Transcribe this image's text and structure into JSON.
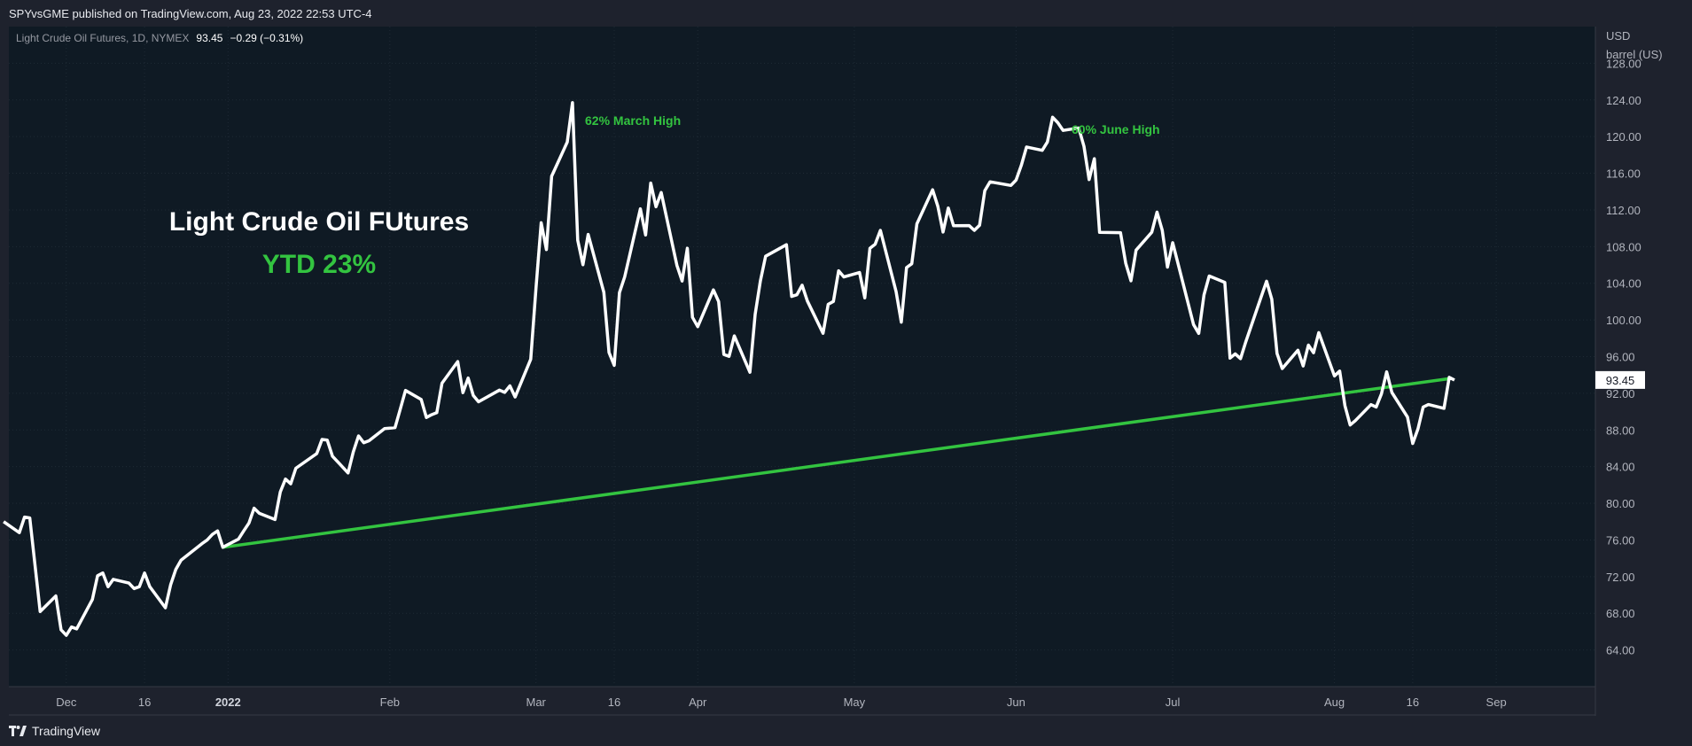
{
  "header": {
    "published_text": "SPYvsGME published on TradingView.com, Aug 23, 2022 22:53 UTC-4"
  },
  "symbol_bar": {
    "name": "Light Crude Oil Futures, 1D, NYMEX",
    "price": "93.45",
    "change": "−0.29 (−0.31%)"
  },
  "footer": {
    "brand": "TradingView",
    "logo_icon": "tradingview-logo-icon"
  },
  "colors": {
    "background": "#0f1a24",
    "line": "#ffffff",
    "trend": "#33c440",
    "annotation": "#33c440",
    "axis_text": "#b2b5be"
  },
  "chart_data": {
    "type": "line",
    "y_unit_label": [
      "USD",
      "barrel (US)"
    ],
    "ylim": [
      60,
      132
    ],
    "y_ticks": [
      "64.00",
      "68.00",
      "72.00",
      "76.00",
      "80.00",
      "84.00",
      "88.00",
      "92.00",
      "96.00",
      "100.00",
      "104.00",
      "108.00",
      "112.00",
      "116.00",
      "120.00",
      "124.00",
      "128.00"
    ],
    "x_ticks": [
      {
        "label": "Dec",
        "date": "2021-12-01",
        "bold": false
      },
      {
        "label": "16",
        "date": "2021-12-16",
        "bold": false
      },
      {
        "label": "2022",
        "date": "2022-01-01",
        "bold": true
      },
      {
        "label": "Feb",
        "date": "2022-02-01",
        "bold": false
      },
      {
        "label": "Mar",
        "date": "2022-03-01",
        "bold": false
      },
      {
        "label": "16",
        "date": "2022-03-16",
        "bold": false
      },
      {
        "label": "Apr",
        "date": "2022-04-01",
        "bold": false
      },
      {
        "label": "May",
        "date": "2022-05-01",
        "bold": false
      },
      {
        "label": "Jun",
        "date": "2022-06-01",
        "bold": false
      },
      {
        "label": "Jul",
        "date": "2022-07-01",
        "bold": false
      },
      {
        "label": "Aug",
        "date": "2022-08-01",
        "bold": false
      },
      {
        "label": "16",
        "date": "2022-08-16",
        "bold": false
      },
      {
        "label": "Sep",
        "date": "2022-09-01",
        "bold": false
      }
    ],
    "xlim": [
      "2021-11-20",
      "2022-09-20"
    ],
    "series": [
      {
        "values": [
          [
            "2021-11-19",
            78.0
          ],
          [
            "2021-11-22",
            76.8
          ],
          [
            "2021-11-23",
            78.5
          ],
          [
            "2021-11-24",
            78.4
          ],
          [
            "2021-11-26",
            68.2
          ],
          [
            "2021-11-29",
            69.9
          ],
          [
            "2021-11-30",
            66.2
          ],
          [
            "2021-12-01",
            65.6
          ],
          [
            "2021-12-02",
            66.5
          ],
          [
            "2021-12-03",
            66.3
          ],
          [
            "2021-12-06",
            69.5
          ],
          [
            "2021-12-07",
            72.1
          ],
          [
            "2021-12-08",
            72.4
          ],
          [
            "2021-12-09",
            70.9
          ],
          [
            "2021-12-10",
            71.7
          ],
          [
            "2021-12-13",
            71.3
          ],
          [
            "2021-12-14",
            70.7
          ],
          [
            "2021-12-15",
            70.9
          ],
          [
            "2021-12-16",
            72.4
          ],
          [
            "2021-12-17",
            70.9
          ],
          [
            "2021-12-20",
            68.6
          ],
          [
            "2021-12-21",
            71.1
          ],
          [
            "2021-12-22",
            72.8
          ],
          [
            "2021-12-23",
            73.8
          ],
          [
            "2021-12-27",
            75.6
          ],
          [
            "2021-12-28",
            76.0
          ],
          [
            "2021-12-29",
            76.6
          ],
          [
            "2021-12-30",
            76.99
          ],
          [
            "2021-12-31",
            75.2
          ],
          [
            "2022-01-03",
            76.1
          ],
          [
            "2022-01-04",
            76.99
          ],
          [
            "2022-01-05",
            77.85
          ],
          [
            "2022-01-06",
            79.46
          ],
          [
            "2022-01-07",
            78.9
          ],
          [
            "2022-01-10",
            78.23
          ],
          [
            "2022-01-11",
            81.22
          ],
          [
            "2022-01-12",
            82.64
          ],
          [
            "2022-01-13",
            82.12
          ],
          [
            "2022-01-14",
            83.82
          ],
          [
            "2022-01-18",
            85.43
          ],
          [
            "2022-01-19",
            86.96
          ],
          [
            "2022-01-20",
            86.9
          ],
          [
            "2022-01-21",
            85.14
          ],
          [
            "2022-01-24",
            83.31
          ],
          [
            "2022-01-25",
            85.6
          ],
          [
            "2022-01-26",
            87.35
          ],
          [
            "2022-01-27",
            86.61
          ],
          [
            "2022-01-28",
            86.82
          ],
          [
            "2022-01-31",
            88.15
          ],
          [
            "2022-02-01",
            88.2
          ],
          [
            "2022-02-02",
            88.26
          ],
          [
            "2022-02-03",
            90.27
          ],
          [
            "2022-02-04",
            92.31
          ],
          [
            "2022-02-07",
            91.32
          ],
          [
            "2022-02-08",
            89.36
          ],
          [
            "2022-02-09",
            89.66
          ],
          [
            "2022-02-10",
            89.88
          ],
          [
            "2022-02-11",
            93.1
          ],
          [
            "2022-02-14",
            95.46
          ],
          [
            "2022-02-15",
            92.07
          ],
          [
            "2022-02-16",
            93.66
          ],
          [
            "2022-02-17",
            91.76
          ],
          [
            "2022-02-18",
            91.07
          ],
          [
            "2022-02-22",
            92.35
          ],
          [
            "2022-02-23",
            92.1
          ],
          [
            "2022-02-24",
            92.81
          ],
          [
            "2022-02-25",
            91.59
          ],
          [
            "2022-02-28",
            95.72
          ],
          [
            "2022-03-01",
            103.41
          ],
          [
            "2022-03-02",
            110.6
          ],
          [
            "2022-03-03",
            107.67
          ],
          [
            "2022-03-04",
            115.68
          ],
          [
            "2022-03-07",
            119.4
          ],
          [
            "2022-03-08",
            123.7
          ],
          [
            "2022-03-09",
            108.7
          ],
          [
            "2022-03-10",
            106.02
          ],
          [
            "2022-03-11",
            109.33
          ],
          [
            "2022-03-14",
            103.01
          ],
          [
            "2022-03-15",
            96.44
          ],
          [
            "2022-03-16",
            95.04
          ],
          [
            "2022-03-17",
            102.98
          ],
          [
            "2022-03-18",
            104.7
          ],
          [
            "2022-03-21",
            112.12
          ],
          [
            "2022-03-22",
            109.27
          ],
          [
            "2022-03-23",
            114.93
          ],
          [
            "2022-03-24",
            112.34
          ],
          [
            "2022-03-25",
            113.9
          ],
          [
            "2022-03-28",
            105.96
          ],
          [
            "2022-03-29",
            104.24
          ],
          [
            "2022-03-30",
            107.82
          ],
          [
            "2022-03-31",
            100.28
          ],
          [
            "2022-04-01",
            99.27
          ],
          [
            "2022-04-04",
            103.28
          ],
          [
            "2022-04-05",
            102.0
          ],
          [
            "2022-04-06",
            96.23
          ],
          [
            "2022-04-07",
            96.03
          ],
          [
            "2022-04-08",
            98.26
          ],
          [
            "2022-04-11",
            94.29
          ],
          [
            "2022-04-12",
            100.6
          ],
          [
            "2022-04-13",
            104.25
          ],
          [
            "2022-04-14",
            106.95
          ],
          [
            "2022-04-18",
            108.21
          ],
          [
            "2022-04-19",
            102.56
          ],
          [
            "2022-04-20",
            102.75
          ],
          [
            "2022-04-21",
            103.79
          ],
          [
            "2022-04-22",
            102.07
          ],
          [
            "2022-04-25",
            98.54
          ],
          [
            "2022-04-26",
            101.7
          ],
          [
            "2022-04-27",
            102.02
          ],
          [
            "2022-04-28",
            105.36
          ],
          [
            "2022-04-29",
            104.69
          ],
          [
            "2022-05-02",
            105.17
          ],
          [
            "2022-05-03",
            102.41
          ],
          [
            "2022-05-04",
            107.81
          ],
          [
            "2022-05-05",
            108.26
          ],
          [
            "2022-05-06",
            109.77
          ],
          [
            "2022-05-09",
            103.09
          ],
          [
            "2022-05-10",
            99.76
          ],
          [
            "2022-05-11",
            105.71
          ],
          [
            "2022-05-12",
            106.13
          ],
          [
            "2022-05-13",
            110.49
          ],
          [
            "2022-05-16",
            114.2
          ],
          [
            "2022-05-17",
            112.4
          ],
          [
            "2022-05-18",
            109.59
          ],
          [
            "2022-05-19",
            112.21
          ],
          [
            "2022-05-20",
            110.28
          ],
          [
            "2022-05-23",
            110.29
          ],
          [
            "2022-05-24",
            109.77
          ],
          [
            "2022-05-25",
            110.33
          ],
          [
            "2022-05-26",
            114.09
          ],
          [
            "2022-05-27",
            115.07
          ],
          [
            "2022-05-31",
            114.67
          ],
          [
            "2022-06-01",
            115.26
          ],
          [
            "2022-06-02",
            116.87
          ],
          [
            "2022-06-03",
            118.87
          ],
          [
            "2022-06-06",
            118.5
          ],
          [
            "2022-06-07",
            119.41
          ],
          [
            "2022-06-08",
            122.11
          ],
          [
            "2022-06-09",
            121.51
          ],
          [
            "2022-06-10",
            120.67
          ],
          [
            "2022-06-13",
            120.93
          ],
          [
            "2022-06-14",
            118.93
          ],
          [
            "2022-06-15",
            115.31
          ],
          [
            "2022-06-16",
            117.59
          ],
          [
            "2022-06-17",
            109.56
          ],
          [
            "2022-06-21",
            109.52
          ],
          [
            "2022-06-22",
            106.19
          ],
          [
            "2022-06-23",
            104.27
          ],
          [
            "2022-06-24",
            107.62
          ],
          [
            "2022-06-27",
            109.57
          ],
          [
            "2022-06-28",
            111.76
          ],
          [
            "2022-06-29",
            109.78
          ],
          [
            "2022-06-30",
            105.76
          ],
          [
            "2022-07-01",
            108.43
          ],
          [
            "2022-07-05",
            99.5
          ],
          [
            "2022-07-06",
            98.53
          ],
          [
            "2022-07-07",
            102.73
          ],
          [
            "2022-07-08",
            104.79
          ],
          [
            "2022-07-11",
            104.09
          ],
          [
            "2022-07-12",
            95.84
          ],
          [
            "2022-07-13",
            96.3
          ],
          [
            "2022-07-14",
            95.78
          ],
          [
            "2022-07-15",
            97.59
          ],
          [
            "2022-07-18",
            102.6
          ],
          [
            "2022-07-19",
            104.22
          ],
          [
            "2022-07-20",
            102.26
          ],
          [
            "2022-07-21",
            96.35
          ],
          [
            "2022-07-22",
            94.7
          ],
          [
            "2022-07-25",
            96.7
          ],
          [
            "2022-07-26",
            94.98
          ],
          [
            "2022-07-27",
            97.26
          ],
          [
            "2022-07-28",
            96.42
          ],
          [
            "2022-07-29",
            98.62
          ],
          [
            "2022-08-01",
            93.89
          ],
          [
            "2022-08-02",
            94.42
          ],
          [
            "2022-08-03",
            90.66
          ],
          [
            "2022-08-04",
            88.54
          ],
          [
            "2022-08-05",
            89.01
          ],
          [
            "2022-08-08",
            90.76
          ],
          [
            "2022-08-09",
            90.5
          ],
          [
            "2022-08-10",
            91.93
          ],
          [
            "2022-08-11",
            94.34
          ],
          [
            "2022-08-12",
            92.09
          ],
          [
            "2022-08-15",
            89.41
          ],
          [
            "2022-08-16",
            86.53
          ],
          [
            "2022-08-17",
            88.11
          ],
          [
            "2022-08-18",
            90.5
          ],
          [
            "2022-08-19",
            90.77
          ],
          [
            "2022-08-22",
            90.36
          ],
          [
            "2022-08-23",
            93.74
          ],
          [
            "2022-08-24",
            93.45
          ]
        ]
      }
    ],
    "trendline": {
      "from": [
        "2021-12-31",
        75.2
      ],
      "to": [
        "2022-08-23",
        93.6
      ]
    },
    "last_price_label": "93.45"
  },
  "annotations": {
    "title": "Light Crude Oil FUtures",
    "subtitle": "YTD 23%",
    "march_high": "62% March High",
    "june_high": "60% June High"
  }
}
